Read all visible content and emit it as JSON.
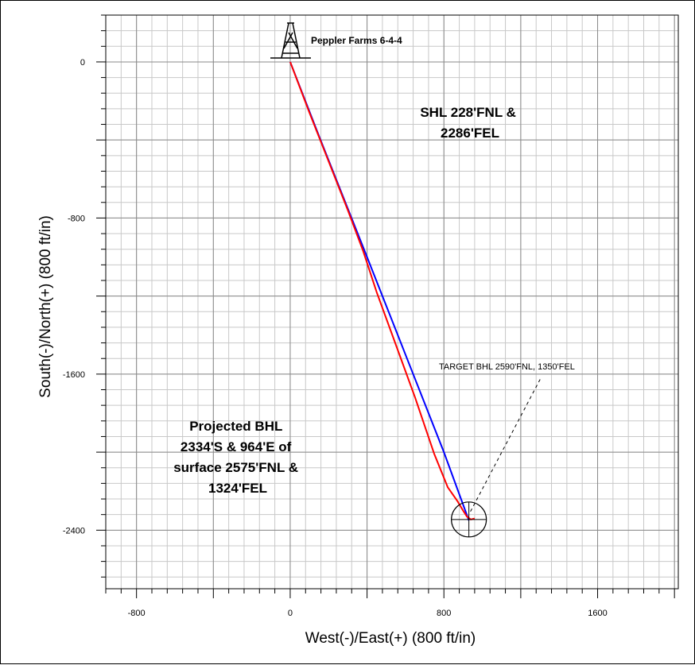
{
  "chart_data": {
    "type": "line",
    "xlabel": "West(-)/East(+) (800 ft/in)",
    "ylabel": "South(-)/North(+) (800 ft/in)",
    "xlim": [
      -960,
      2020
    ],
    "ylim": [
      -2700,
      240
    ],
    "x_ticks": [
      -800,
      0,
      800,
      1600
    ],
    "y_ticks": [
      0,
      -800,
      -1600,
      -2400
    ],
    "x_tick_labels": [
      "-800",
      "0",
      "800",
      "1600"
    ],
    "y_tick_labels": [
      "0",
      "-800",
      "-1600",
      "-2400"
    ],
    "grid": true,
    "series": [
      {
        "color": "#0000ff",
        "x": [
          0,
          150,
          400,
          600,
          800,
          930
        ],
        "y": [
          0,
          -380,
          -1000,
          -1500,
          -2000,
          -2350
        ]
      },
      {
        "color": "#ff0000",
        "x": [
          0,
          100,
          200,
          300,
          380,
          450,
          550,
          650,
          750,
          820,
          870,
          900,
          920,
          940,
          960
        ],
        "y": [
          0,
          -260,
          -510,
          -760,
          -970,
          -1180,
          -1450,
          -1720,
          -2010,
          -2180,
          -2250,
          -2300,
          -2330,
          -2345,
          -2340
        ]
      }
    ],
    "well_label": "Peppler Farms 6-4-4",
    "target": {
      "x": 930,
      "y": -2345,
      "label": "TARGET BHL 2590'FNL, 1350'FEL"
    },
    "annotations": {
      "shl": [
        "SHL 228'FNL &",
        "2286'FEL"
      ],
      "projected": [
        "Projected BHL",
        "2334'S & 964'E of",
        "surface 2575'FNL &",
        "1324'FEL"
      ]
    }
  }
}
